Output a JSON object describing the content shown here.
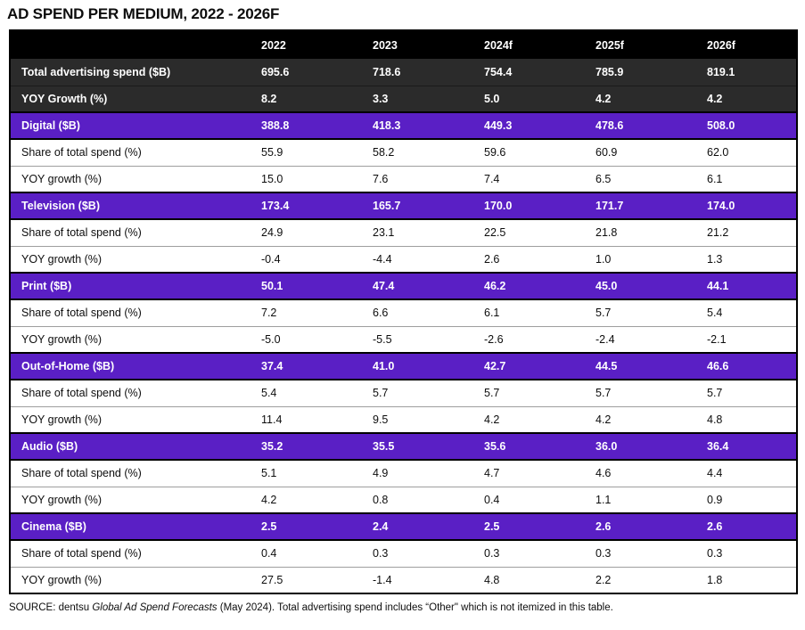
{
  "title": "AD SPEND PER MEDIUM, 2022 - 2026F",
  "colors": {
    "header_bg": "#000000",
    "summary_row_bg": "#2b2b2b",
    "accent_purple": "#5a1fc5",
    "sub_row_divider": "#9e9e9e",
    "text_on_dark": "#ffffff",
    "text_on_light": "#0d0d0d"
  },
  "chart_data": {
    "type": "table",
    "title": "AD SPEND PER MEDIUM, 2022 - 2026F",
    "columns": [
      "2022",
      "2023",
      "2024f",
      "2025f",
      "2026f"
    ],
    "rows": [
      {
        "label": "Total advertising spend ($B)",
        "style": "summary",
        "values": [
          "695.6",
          "718.6",
          "754.4",
          "785.9",
          "819.1"
        ]
      },
      {
        "label": "YOY Growth (%)",
        "style": "summary",
        "values": [
          "8.2",
          "3.3",
          "5.0",
          "4.2",
          "4.2"
        ]
      },
      {
        "label": "Digital ($B)",
        "style": "group",
        "values": [
          "388.8",
          "418.3",
          "449.3",
          "478.6",
          "508.0"
        ]
      },
      {
        "label": "Share of total spend (%)",
        "style": "sub",
        "values": [
          "55.9",
          "58.2",
          "59.6",
          "60.9",
          "62.0"
        ]
      },
      {
        "label": "YOY growth (%)",
        "style": "sub",
        "values": [
          "15.0",
          "7.6",
          "7.4",
          "6.5",
          "6.1"
        ]
      },
      {
        "label": "Television ($B)",
        "style": "group",
        "values": [
          "173.4",
          "165.7",
          "170.0",
          "171.7",
          "174.0"
        ]
      },
      {
        "label": "Share of total spend (%)",
        "style": "sub",
        "values": [
          "24.9",
          "23.1",
          "22.5",
          "21.8",
          "21.2"
        ]
      },
      {
        "label": "YOY growth (%)",
        "style": "sub",
        "values": [
          "-0.4",
          "-4.4",
          "2.6",
          "1.0",
          "1.3"
        ]
      },
      {
        "label": "Print ($B)",
        "style": "group",
        "values": [
          "50.1",
          "47.4",
          "46.2",
          "45.0",
          "44.1"
        ]
      },
      {
        "label": "Share of total spend (%)",
        "style": "sub",
        "values": [
          "7.2",
          "6.6",
          "6.1",
          "5.7",
          "5.4"
        ]
      },
      {
        "label": "YOY growth (%)",
        "style": "sub",
        "values": [
          "-5.0",
          "-5.5",
          "-2.6",
          "-2.4",
          "-2.1"
        ]
      },
      {
        "label": "Out-of-Home ($B)",
        "style": "group",
        "values": [
          "37.4",
          "41.0",
          "42.7",
          "44.5",
          "46.6"
        ]
      },
      {
        "label": "Share of total spend (%)",
        "style": "sub",
        "values": [
          "5.4",
          "5.7",
          "5.7",
          "5.7",
          "5.7"
        ]
      },
      {
        "label": "YOY growth (%)",
        "style": "sub",
        "values": [
          "11.4",
          "9.5",
          "4.2",
          "4.2",
          "4.8"
        ]
      },
      {
        "label": "Audio ($B)",
        "style": "group",
        "values": [
          "35.2",
          "35.5",
          "35.6",
          "36.0",
          "36.4"
        ]
      },
      {
        "label": "Share of total spend (%)",
        "style": "sub",
        "values": [
          "5.1",
          "4.9",
          "4.7",
          "4.6",
          "4.4"
        ]
      },
      {
        "label": "YOY growth (%)",
        "style": "sub",
        "values": [
          "4.2",
          "0.8",
          "0.4",
          "1.1",
          "0.9"
        ]
      },
      {
        "label": "Cinema ($B)",
        "style": "group",
        "values": [
          "2.5",
          "2.4",
          "2.5",
          "2.6",
          "2.6"
        ]
      },
      {
        "label": "Share of total spend (%)",
        "style": "sub",
        "values": [
          "0.4",
          "0.3",
          "0.3",
          "0.3",
          "0.3"
        ]
      },
      {
        "label": "YOY growth (%)",
        "style": "sub",
        "values": [
          "27.5",
          "-1.4",
          "4.8",
          "2.2",
          "1.8"
        ]
      }
    ]
  },
  "footer": {
    "source_prefix": "SOURCE: dentsu ",
    "source_italic": "Global Ad Spend Forecasts",
    "source_suffix": " (May 2024). Total advertising spend includes “Other\" which is not itemized in this table."
  }
}
